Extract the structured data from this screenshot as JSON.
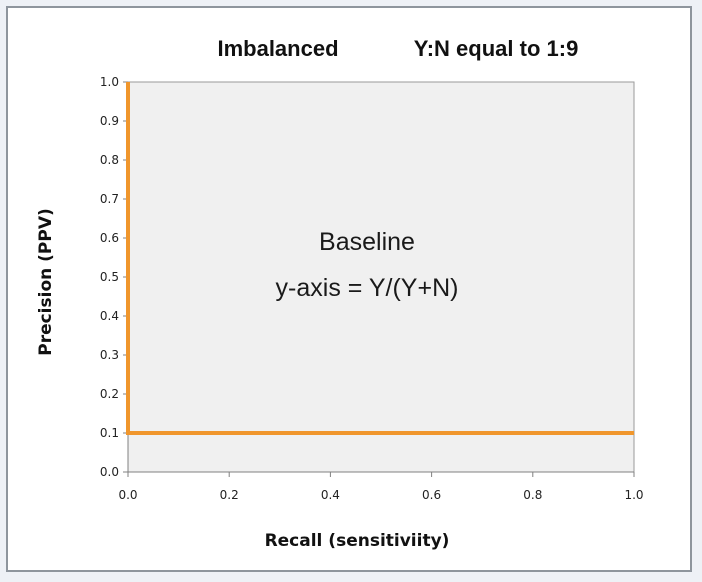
{
  "chart_data": {
    "type": "line",
    "title_left": "Imbalanced",
    "title_right": "Y:N equal to 1:9",
    "xlabel": "Recall (sensitiviity)",
    "ylabel": "Precision (PPV)",
    "xlim": [
      0,
      1
    ],
    "ylim": [
      0,
      1
    ],
    "x_ticks": [
      "0.0",
      "0.2",
      "0.4",
      "0.6",
      "0.8",
      "1.0"
    ],
    "y_ticks": [
      "0.0",
      "0.1",
      "0.2",
      "0.3",
      "0.4",
      "0.5",
      "0.6",
      "0.7",
      "0.8",
      "0.9",
      "1.0"
    ],
    "grid": false,
    "legend": "none",
    "series": [
      {
        "color": "#f0962c",
        "points": [
          [
            0.0,
            1.0
          ],
          [
            0.0,
            0.1
          ],
          [
            1.0,
            0.1
          ]
        ]
      }
    ],
    "annotation_line1": "Baseline",
    "annotation_line2": "y-axis = Y/(Y+N)",
    "plot_background": "#f0f0f0"
  }
}
